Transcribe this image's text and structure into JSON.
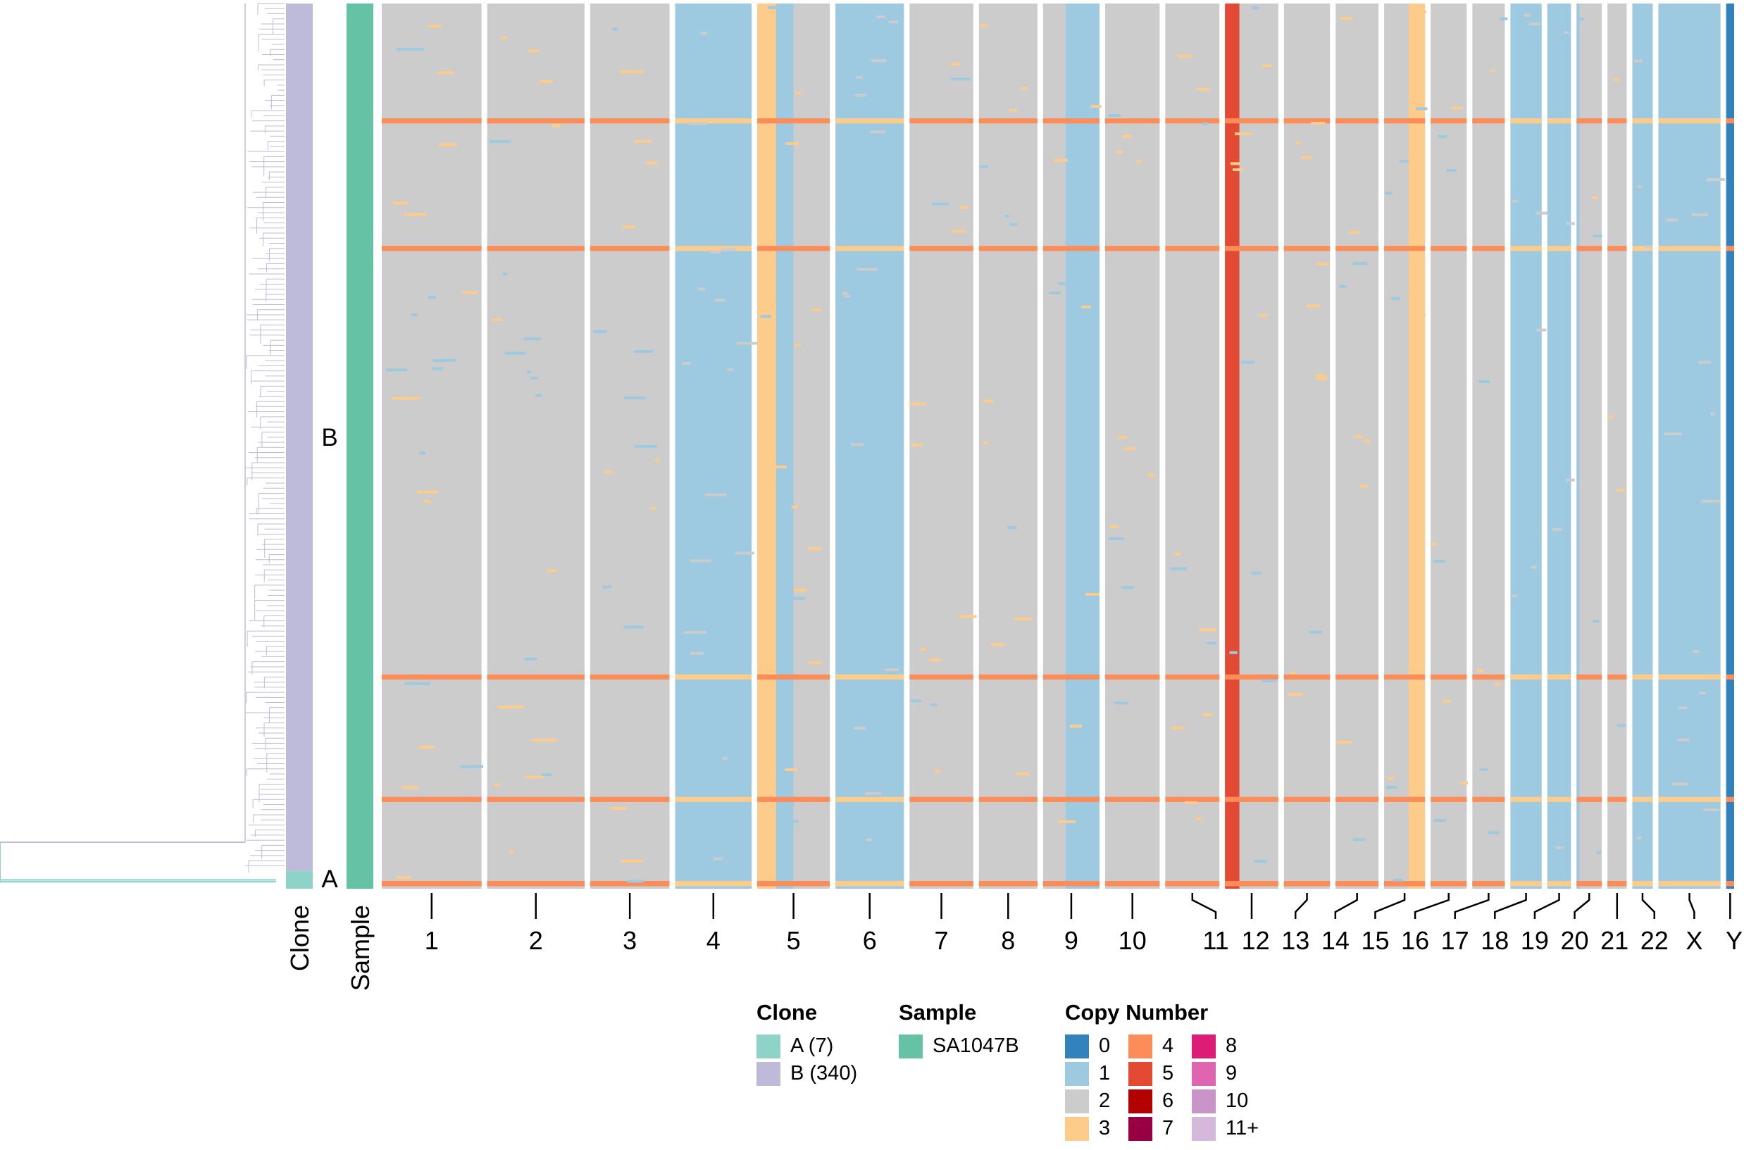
{
  "chart_data": {
    "type": "heatmap",
    "title": "",
    "annotation_labels": {
      "clone": "Clone",
      "sample": "Sample"
    },
    "clones": [
      {
        "id": "A",
        "label": "A",
        "legend": "A (7)",
        "cells": 7,
        "color": "#8dd3c7"
      },
      {
        "id": "B",
        "label": "B",
        "legend": "B (340)",
        "cells": 340,
        "color": "#bebada"
      }
    ],
    "samples": [
      {
        "label": "SA1047B",
        "color": "#66c2a5"
      }
    ],
    "legend_titles": {
      "clone": "Clone",
      "sample": "Sample",
      "copy_number": "Copy Number"
    },
    "copy_number_colors": [
      {
        "state": "0",
        "color": "#3182bd"
      },
      {
        "state": "1",
        "color": "#9ecae1"
      },
      {
        "state": "2",
        "color": "#cccccc"
      },
      {
        "state": "3",
        "color": "#fdcc8a"
      },
      {
        "state": "4",
        "color": "#fc8d59"
      },
      {
        "state": "5",
        "color": "#e34a33"
      },
      {
        "state": "6",
        "color": "#b30000"
      },
      {
        "state": "7",
        "color": "#980043"
      },
      {
        "state": "8",
        "color": "#dd1c77"
      },
      {
        "state": "9",
        "color": "#df65b0"
      },
      {
        "state": "10",
        "color": "#c994c7"
      },
      {
        "state": "11+",
        "color": "#d4b9da"
      }
    ],
    "chromosomes": [
      {
        "name": "1",
        "size": 249,
        "base_cn": 2
      },
      {
        "name": "2",
        "size": 243,
        "base_cn": 2
      },
      {
        "name": "3",
        "size": 198,
        "base_cn": 2
      },
      {
        "name": "4",
        "size": 191,
        "base_cn": 1
      },
      {
        "name": "5",
        "size": 181,
        "base_cn": 2,
        "segments": [
          {
            "start": 0.0,
            "end": 0.26,
            "cn": 3
          },
          {
            "start": 0.26,
            "end": 0.5,
            "cn": 1
          }
        ]
      },
      {
        "name": "6",
        "size": 171,
        "base_cn": 1
      },
      {
        "name": "7",
        "size": 159,
        "base_cn": 2
      },
      {
        "name": "8",
        "size": 146,
        "base_cn": 2
      },
      {
        "name": "9",
        "size": 141,
        "base_cn": 2,
        "segments": [
          {
            "start": 0.4,
            "end": 1.0,
            "cn": 1
          }
        ]
      },
      {
        "name": "10",
        "size": 136,
        "base_cn": 2
      },
      {
        "name": "11",
        "size": 135,
        "base_cn": 2
      },
      {
        "name": "12",
        "size": 133,
        "base_cn": 2,
        "segments": [
          {
            "start": 0.0,
            "end": 0.27,
            "cn": 5
          }
        ]
      },
      {
        "name": "13",
        "size": 115,
        "base_cn": 2
      },
      {
        "name": "14",
        "size": 107,
        "base_cn": 2
      },
      {
        "name": "15",
        "size": 102,
        "base_cn": 2,
        "segments": [
          {
            "start": 0.6,
            "end": 1.0,
            "cn": 3
          }
        ]
      },
      {
        "name": "16",
        "size": 90,
        "base_cn": 2
      },
      {
        "name": "17",
        "size": 81,
        "base_cn": 2
      },
      {
        "name": "18",
        "size": 78,
        "base_cn": 1
      },
      {
        "name": "19",
        "size": 59,
        "base_cn": 1
      },
      {
        "name": "20",
        "size": 63,
        "base_cn": 2,
        "segments": [
          {
            "start": 0.0,
            "end": 0.12,
            "cn": 1
          }
        ]
      },
      {
        "name": "21",
        "size": 48,
        "base_cn": 2
      },
      {
        "name": "22",
        "size": 51,
        "base_cn": 1
      },
      {
        "name": "X",
        "size": 155,
        "base_cn": 1
      },
      {
        "name": "Y",
        "size": 20,
        "base_cn": 0
      }
    ],
    "tree_colors": {
      "clone_A": "#8dd3c7",
      "clone_B": "#bebada"
    }
  }
}
